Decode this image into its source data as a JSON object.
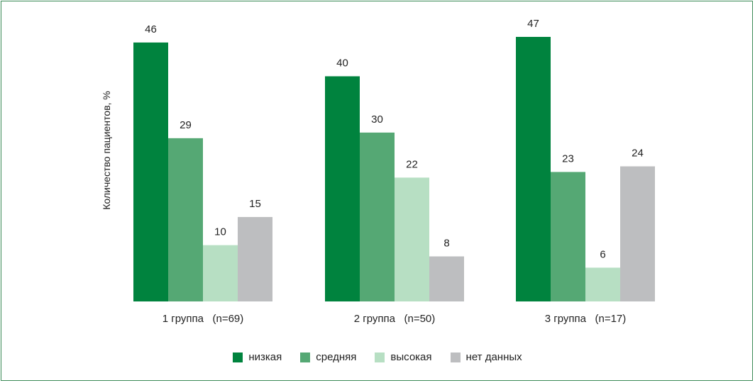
{
  "chart_data": {
    "type": "bar",
    "ylabel": "Количество пациентов, %",
    "categories": [
      "1 группа   (n=69)",
      "2 группа   (n=50)",
      "3 группа   (n=17)"
    ],
    "series": [
      {
        "name": "низкая",
        "color": "#00833e",
        "values": [
          46,
          40,
          47
        ]
      },
      {
        "name": "средняя",
        "color": "#55a874",
        "values": [
          29,
          30,
          23
        ]
      },
      {
        "name": "высокая",
        "color": "#b7dfc3",
        "values": [
          10,
          22,
          6
        ]
      },
      {
        "name": "нет данных",
        "color": "#bdbec0",
        "values": [
          15,
          8,
          24
        ]
      }
    ],
    "ylim": [
      0,
      47
    ],
    "legend_position": "bottom",
    "grid": false
  }
}
